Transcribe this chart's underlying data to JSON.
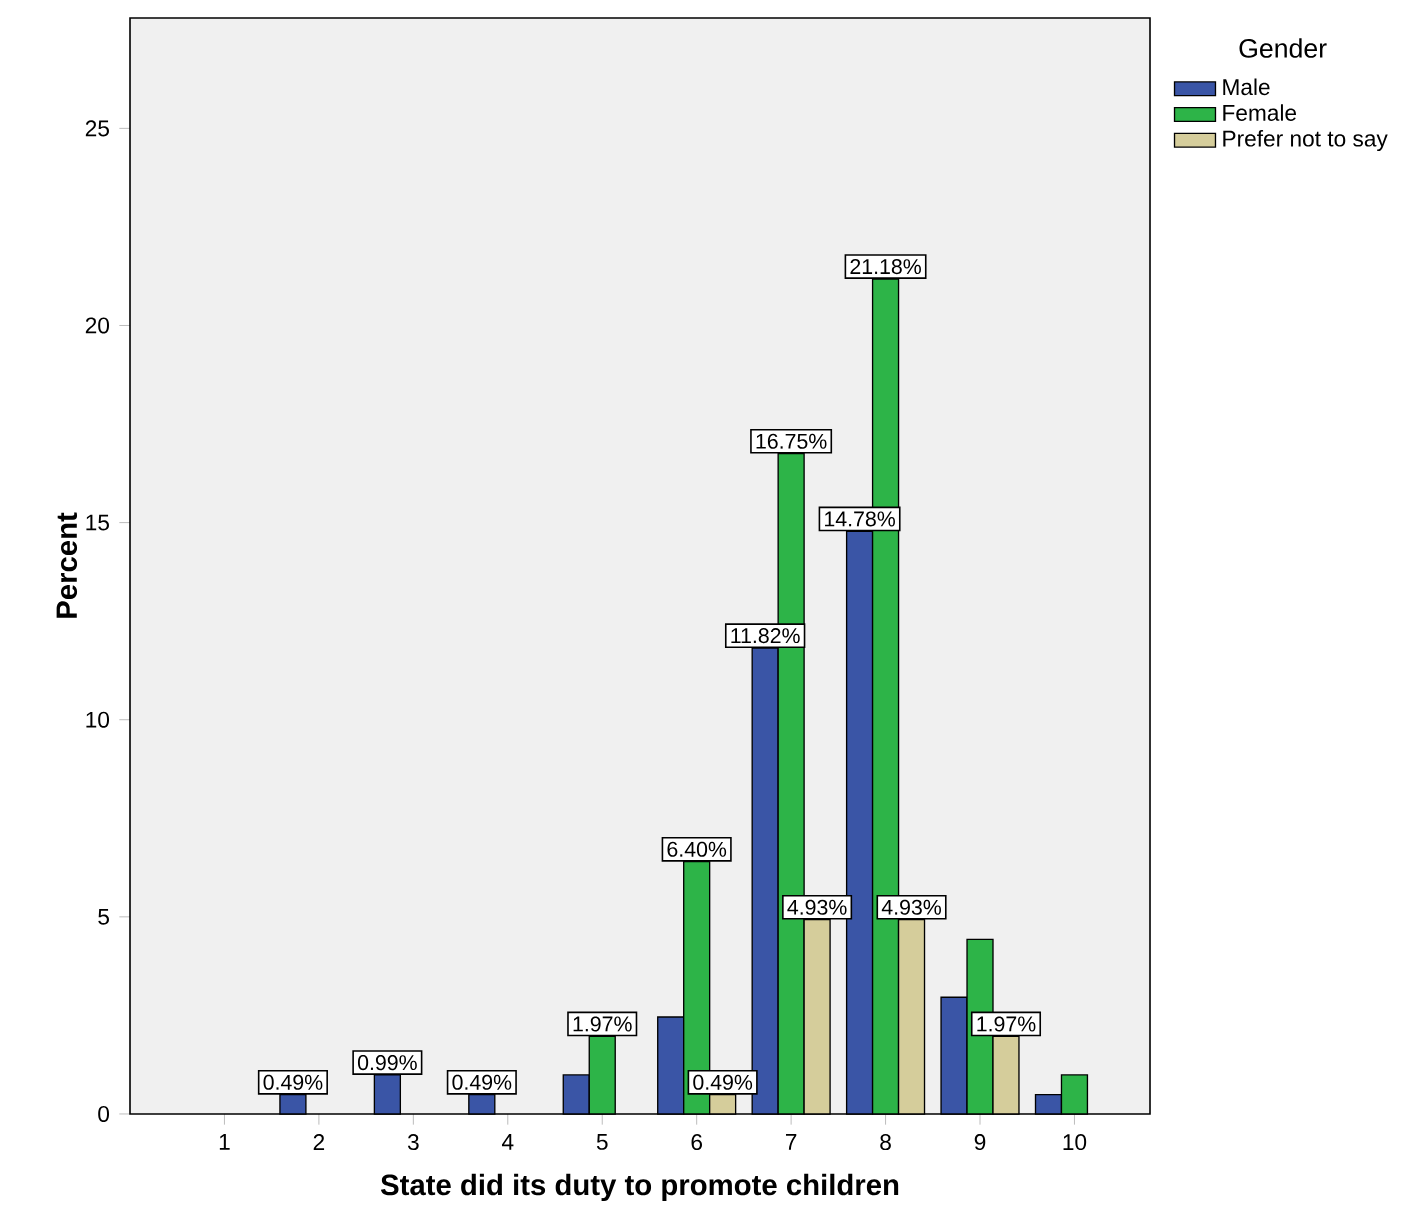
{
  "chart_data": {
    "type": "bar",
    "xlabel": "State did its duty to promote children",
    "ylabel": "Percent",
    "legend_title": "Gender",
    "categories": [
      "1",
      "2",
      "3",
      "4",
      "5",
      "6",
      "7",
      "8",
      "9",
      "10"
    ],
    "series": [
      {
        "name": "Male",
        "color": "#3a55a6",
        "values": [
          null,
          0.49,
          0.99,
          0.49,
          0.99,
          2.46,
          11.82,
          14.78,
          2.96,
          0.49
        ],
        "value_labels": [
          null,
          "0.49%",
          "0.99%",
          "0.49%",
          null,
          null,
          "11.82%",
          "14.78%",
          null,
          null
        ]
      },
      {
        "name": "Female",
        "color": "#2db448",
        "values": [
          null,
          null,
          null,
          null,
          1.97,
          6.4,
          16.75,
          21.18,
          4.43,
          0.99
        ],
        "value_labels": [
          null,
          null,
          null,
          null,
          "1.97%",
          "6.40%",
          "16.75%",
          "21.18%",
          null,
          null
        ]
      },
      {
        "name": "Prefer not to say",
        "color": "#d5cd9b",
        "values": [
          null,
          null,
          null,
          null,
          null,
          0.49,
          4.93,
          4.93,
          1.97,
          null
        ],
        "value_labels": [
          null,
          null,
          null,
          null,
          null,
          "0.49%",
          "4.93%",
          "4.93%",
          "1.97%",
          null
        ]
      }
    ],
    "ylim": [
      0,
      27.8
    ],
    "yticks": [
      0,
      5,
      10,
      15,
      20,
      25
    ],
    "legend": "top right"
  }
}
